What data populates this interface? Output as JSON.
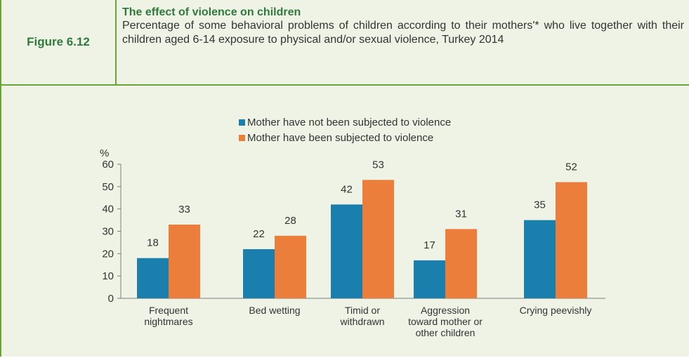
{
  "header": {
    "figure_label": "Figure 6.12",
    "title": "The effect of violence on children",
    "subtitle": "Percentage of some behavioral problems of children according to their mothers'* who live together with their children aged 6-14 exposure to physical and/or sexual violence, Turkey 2014"
  },
  "chart_data": {
    "type": "bar",
    "title": "",
    "xlabel": "",
    "ylabel": "%",
    "ylim": [
      0,
      60
    ],
    "yticks": [
      "0",
      "10",
      "20",
      "30",
      "40",
      "50",
      "60"
    ],
    "categories": [
      [
        "Frequent",
        "nightmares"
      ],
      [
        "Bed wetting"
      ],
      [
        "Timid or",
        "withdrawn"
      ],
      [
        "Aggression",
        "toward mother or",
        "other children"
      ],
      [
        "Crying peevishly"
      ]
    ],
    "series": [
      {
        "name": "Mother have not been subjected to violence",
        "color": "#1a7fad",
        "values": [
          18,
          22,
          42,
          17,
          35
        ]
      },
      {
        "name": "Mother have been subjected to violence",
        "color": "#ea7e3a",
        "values": [
          33,
          28,
          53,
          31,
          52
        ]
      }
    ],
    "legend_position": "top-center",
    "grid": false
  }
}
